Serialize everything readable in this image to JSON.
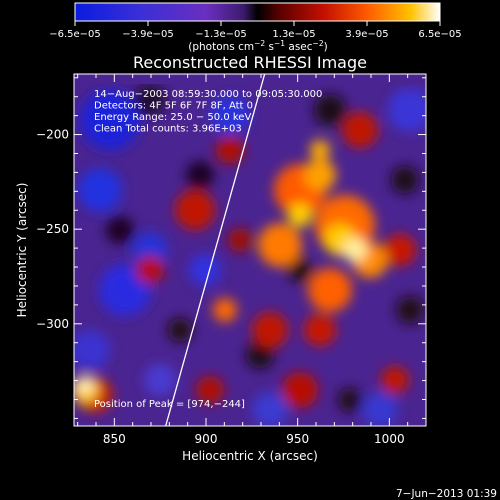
{
  "colorbar": {
    "ticks": [
      "−6.5e−05",
      "−3.9e−05",
      "−1.3e−05",
      "1.3e−05",
      "3.9e−05",
      "6.5e−05"
    ],
    "tick_values": [
      -6.5e-05,
      -3.9e-05,
      -1.3e-05,
      1.3e-05,
      3.9e-05,
      6.5e-05
    ],
    "range": [
      -6.5e-05,
      6.5e-05
    ],
    "units_main": "(photons cm",
    "units_sup1": "−2",
    "units_mid": " s",
    "units_sup2": "−1",
    "units_end": " asec",
    "units_sup3": "−2",
    "units_close": ")"
  },
  "chart_data": {
    "type": "heatmap",
    "title": "Reconstructed RHESSI Image",
    "xlabel": "Heliocentric X (arcsec)",
    "ylabel": "Heliocentric Y (arcsec)",
    "xlim": [
      828,
      1020
    ],
    "ylim": [
      -354,
      -168
    ],
    "x_ticks": [
      850,
      900,
      950,
      1000
    ],
    "y_ticks": [
      -200,
      -250,
      -300
    ],
    "x_tick_labels": [
      "850",
      "900",
      "950",
      "1000"
    ],
    "y_tick_labels": [
      "−200",
      "−250",
      "−300"
    ],
    "colormap": "blue-purple-red-yellow-white",
    "info_lines": [
      "14−Aug−2003 08:59:30.000 to 09:05:30.000",
      "Detectors: 4F 5F 6F 7F 8F, Att 0",
      "Energy Range: 25.0 − 50.0 keV",
      "Clean    Total counts: 3.96E+03"
    ],
    "peak_label": "Position of Peak = [974,−244]",
    "peak": [
      974,
      -244
    ],
    "limb_line": [
      [
        878,
        -354
      ],
      [
        932,
        -168
      ]
    ]
  },
  "footer": {
    "timestamp": "7−Jun−2013 01:39"
  },
  "colors": {
    "background": "#000000",
    "axes": "#ffffff"
  }
}
